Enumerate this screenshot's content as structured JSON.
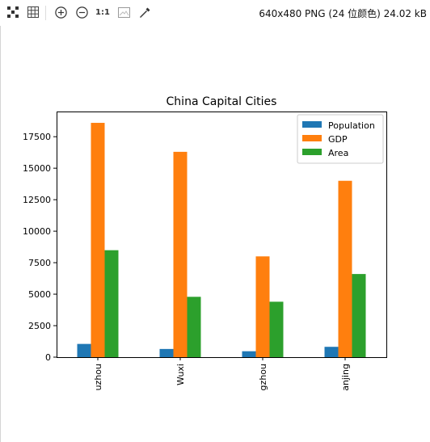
{
  "toolbar": {
    "tools": [
      {
        "name": "fit-to-window",
        "icon": "fit-icon"
      },
      {
        "name": "grid",
        "icon": "grid-icon"
      },
      {
        "name": "zoom-in",
        "icon": "zoom-in-icon"
      },
      {
        "name": "zoom-out",
        "icon": "zoom-out-icon"
      },
      {
        "name": "actual-size",
        "icon": "actual-size-icon",
        "label": "1:1"
      },
      {
        "name": "image-frame",
        "icon": "image-icon"
      },
      {
        "name": "color-picker",
        "icon": "eyedropper-icon"
      }
    ],
    "file_info": "640x480 PNG (24 位颜色) 24.02 kB"
  },
  "colors": {
    "population": "#1f77b4",
    "gdp": "#ff7f0e",
    "area": "#2ca02c"
  },
  "chart_data": {
    "type": "bar",
    "title": "China Capital Cities",
    "categories": [
      "uzhou",
      "Wuxi",
      "gzhou",
      "anjing"
    ],
    "series": [
      {
        "name": "Population",
        "values": [
          1050,
          650,
          470,
          820
        ]
      },
      {
        "name": "GDP",
        "values": [
          18600,
          16300,
          8000,
          14000
        ]
      },
      {
        "name": "Area",
        "values": [
          8490,
          4790,
          4400,
          6600
        ]
      }
    ],
    "yticks": [
      "0",
      "2500",
      "5000",
      "7500",
      "10000",
      "12500",
      "15000",
      "17500"
    ],
    "ylim": [
      0,
      19500
    ],
    "xlabel": "",
    "ylabel": "",
    "legend": "top-right",
    "grid": false
  }
}
